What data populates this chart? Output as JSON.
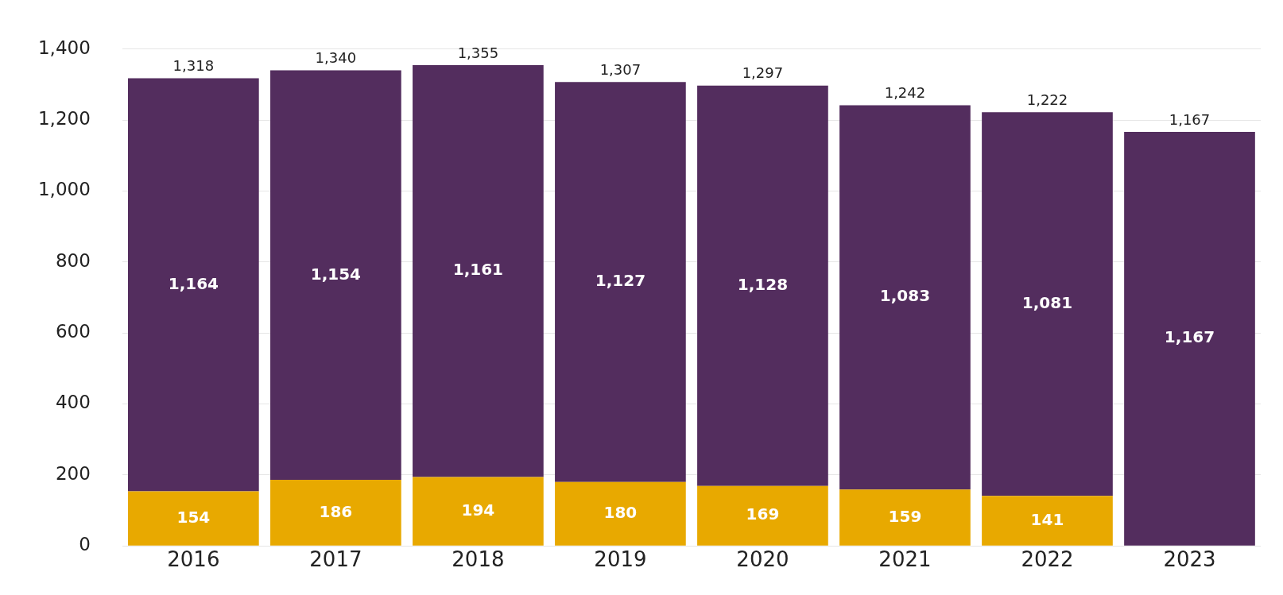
{
  "chart_data": {
    "type": "bar",
    "stacked": true,
    "categories": [
      "2016",
      "2017",
      "2018",
      "2019",
      "2020",
      "2021",
      "2022",
      "2023"
    ],
    "series": [
      {
        "color": "#e8a900",
        "values": [
          154,
          186,
          194,
          180,
          169,
          159,
          141,
          null
        ],
        "value_labels": [
          "154",
          "186",
          "194",
          "180",
          "169",
          "159",
          "141",
          null
        ]
      },
      {
        "color": "#532d5e",
        "values": [
          1164,
          1154,
          1161,
          1127,
          1128,
          1083,
          1081,
          1167
        ],
        "value_labels": [
          "1,164",
          "1,154",
          "1,161",
          "1,127",
          "1,128",
          "1,083",
          "1,081",
          "1,167"
        ]
      }
    ],
    "totals": [
      "1,318",
      "1,340",
      "1,355",
      "1,307",
      "1,297",
      "1,242",
      "1,222",
      "1,167"
    ],
    "ylim": [
      0,
      1400
    ],
    "yticks": [
      0,
      200,
      400,
      600,
      800,
      {
        "value": 1000,
        "label": "1,000"
      },
      {
        "value": 1200,
        "label": "1,200"
      },
      {
        "value": 1400,
        "label": "1,400"
      }
    ],
    "grid": "y",
    "legend": false
  }
}
